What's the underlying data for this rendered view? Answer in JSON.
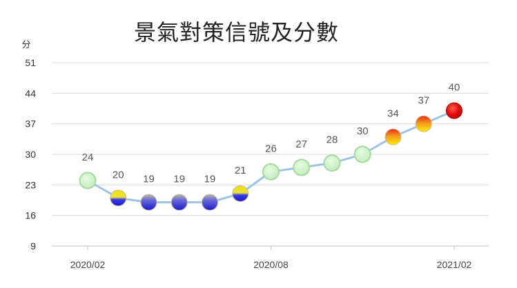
{
  "chart_data": {
    "type": "line",
    "title": "景氣對策信號及分數",
    "ylabel": "分",
    "xlabel": "",
    "ylim": [
      9,
      51
    ],
    "yticks": [
      "9",
      "16",
      "23",
      "30",
      "37",
      "44",
      "51"
    ],
    "x_tick_labels": [
      "2020/02",
      "2020/08",
      "2021/02"
    ],
    "categories": [
      "2020/02",
      "2020/03",
      "2020/04",
      "2020/05",
      "2020/06",
      "2020/07",
      "2020/08",
      "2020/09",
      "2020/10",
      "2020/11",
      "2020/12",
      "2021/01",
      "2021/02"
    ],
    "values": [
      24,
      20,
      19,
      19,
      19,
      21,
      26,
      27,
      28,
      30,
      34,
      37,
      40
    ],
    "value_labels": [
      "24",
      "20",
      "19",
      "19",
      "19",
      "21",
      "26",
      "27",
      "28",
      "30",
      "34",
      "37",
      "40"
    ],
    "signals": [
      "green",
      "yellow-blue",
      "blue",
      "blue",
      "blue",
      "yellow-blue",
      "green",
      "green",
      "green",
      "green",
      "yellow-red",
      "yellow-red",
      "red"
    ],
    "grid": true,
    "legend": "none",
    "colors": {
      "line": "#9dc3e6",
      "grid": "#d9d9d9",
      "green": "#c8efc4",
      "green_edge": "#a6d8a0",
      "blue": "#2222dd",
      "yellow": "#f2e000",
      "red": "#e00000",
      "orange": "#f07020"
    }
  }
}
